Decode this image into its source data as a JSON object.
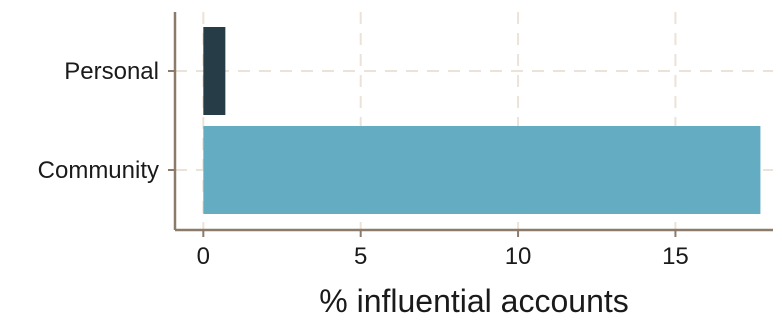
{
  "chart_data": {
    "type": "bar",
    "orientation": "horizontal",
    "categories": [
      "Personal",
      "Community"
    ],
    "values": [
      0.7,
      17.7
    ],
    "bar_colors": [
      "#263d47",
      "#63acc2"
    ],
    "title": "",
    "xlabel": "% influential accounts",
    "ylabel": "",
    "xlim": [
      -0.9,
      18.1
    ],
    "xticks": [
      0,
      5,
      10,
      15
    ],
    "grid": true,
    "legend": "none"
  }
}
